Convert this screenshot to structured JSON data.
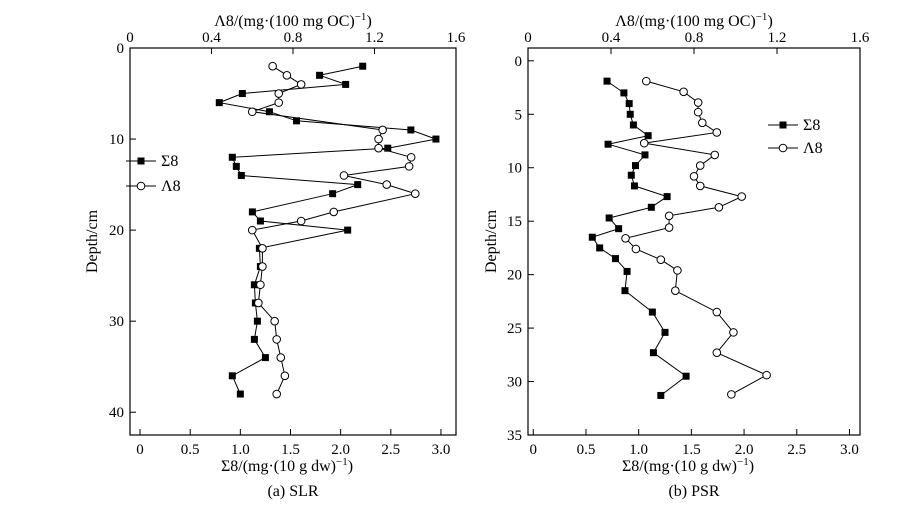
{
  "chart_data": [
    {
      "type": "line",
      "caption": "(a) SLR",
      "xlabel_bottom": "Σ8/(mg·(10 g dw)",
      "xlabel_top": "Λ8/(mg·(100 mg OC)",
      "ylabel": "Depth/cm",
      "xlim_bottom": [
        -0.1,
        3.15
      ],
      "xlim_top": [
        0,
        1.6
      ],
      "ylim": [
        0,
        42.5
      ],
      "y_reversed": true,
      "xticks_bottom": [
        0,
        0.5,
        1.0,
        1.5,
        2.0,
        2.5,
        3.0
      ],
      "xticklabels_bottom": [
        "0",
        "0.5",
        "1.0",
        "1.5",
        "2.0",
        "2.5",
        "3.0"
      ],
      "xticks_top": [
        0,
        0.4,
        0.8,
        1.2,
        1.6
      ],
      "xticklabels_top": [
        "0",
        "0.4",
        "0.8",
        "1.2",
        "1.6"
      ],
      "yticks": [
        0,
        10,
        20,
        30,
        40
      ],
      "yticklabels": [
        "0",
        "10",
        "20",
        "30",
        "40"
      ],
      "legend_placement": "left",
      "series": [
        {
          "name": "Σ8",
          "axis": "bottom",
          "marker": "square-filled",
          "points": [
            [
              2.22,
              2
            ],
            [
              1.79,
              3
            ],
            [
              2.05,
              4
            ],
            [
              1.02,
              5
            ],
            [
              0.79,
              6
            ],
            [
              1.29,
              7
            ],
            [
              1.56,
              8
            ],
            [
              2.7,
              9
            ],
            [
              2.95,
              10
            ],
            [
              2.47,
              11
            ],
            [
              0.92,
              12
            ],
            [
              0.96,
              13
            ],
            [
              1.01,
              14
            ],
            [
              2.17,
              15
            ],
            [
              1.92,
              16
            ],
            [
              1.12,
              18
            ],
            [
              1.2,
              19
            ],
            [
              2.07,
              20
            ],
            [
              1.19,
              22
            ],
            [
              1.2,
              24
            ],
            [
              1.14,
              26
            ],
            [
              1.15,
              28
            ],
            [
              1.17,
              30
            ],
            [
              1.14,
              32
            ],
            [
              1.25,
              34
            ],
            [
              0.92,
              36
            ],
            [
              1.0,
              38
            ]
          ]
        },
        {
          "name": "Λ8",
          "axis": "top",
          "marker": "circle-open",
          "points": [
            [
              0.7,
              2
            ],
            [
              0.77,
              3
            ],
            [
              0.84,
              4
            ],
            [
              0.73,
              5
            ],
            [
              0.73,
              6
            ],
            [
              0.6,
              7
            ],
            [
              1.24,
              9
            ],
            [
              1.22,
              10
            ],
            [
              1.22,
              11
            ],
            [
              1.38,
              12
            ],
            [
              1.37,
              13
            ],
            [
              1.05,
              14
            ],
            [
              1.26,
              15
            ],
            [
              1.4,
              16
            ],
            [
              1.0,
              18
            ],
            [
              0.84,
              19
            ],
            [
              0.6,
              20
            ],
            [
              0.65,
              22
            ],
            [
              0.65,
              24
            ],
            [
              0.64,
              26
            ],
            [
              0.63,
              28
            ],
            [
              0.71,
              30
            ],
            [
              0.72,
              32
            ],
            [
              0.74,
              34
            ],
            [
              0.76,
              36
            ],
            [
              0.72,
              38
            ]
          ]
        }
      ]
    },
    {
      "type": "line",
      "caption": "(b) PSR",
      "xlabel_bottom": "Σ8/(mg·(10 g dw)",
      "xlabel_top": "Λ8/(mg·(100 mg OC)",
      "ylabel": "Depth/cm",
      "xlim_bottom": [
        -0.05,
        3.1
      ],
      "xlim_top": [
        0,
        1.6
      ],
      "ylim": [
        -1.2,
        35
      ],
      "y_reversed": true,
      "xticks_bottom": [
        0,
        0.5,
        1.0,
        1.5,
        2.0,
        2.5,
        3.0
      ],
      "xticklabels_bottom": [
        "0",
        "0.5",
        "1.0",
        "1.5",
        "2.0",
        "2.5",
        "3.0"
      ],
      "xticks_top": [
        0,
        0.4,
        0.8,
        1.2,
        1.6
      ],
      "xticklabels_top": [
        "0",
        "0.4",
        "0.8",
        "1.2",
        "1.6"
      ],
      "yticks": [
        0,
        5,
        10,
        15,
        20,
        25,
        30,
        35
      ],
      "yticklabels": [
        "0",
        "5",
        "10",
        "15",
        "20",
        "25",
        "30",
        "35"
      ],
      "legend_placement": "top-right",
      "series": [
        {
          "name": "Σ8",
          "axis": "bottom",
          "marker": "square-filled",
          "points": [
            [
              0.7,
              1.9
            ],
            [
              0.86,
              3
            ],
            [
              0.91,
              4
            ],
            [
              0.92,
              5
            ],
            [
              0.95,
              6
            ],
            [
              1.09,
              7
            ],
            [
              0.71,
              7.8
            ],
            [
              1.06,
              8.8
            ],
            [
              0.97,
              9.8
            ],
            [
              0.93,
              10.7
            ],
            [
              0.96,
              11.7
            ],
            [
              1.27,
              12.7
            ],
            [
              1.12,
              13.7
            ],
            [
              0.72,
              14.7
            ],
            [
              0.81,
              15.7
            ],
            [
              0.56,
              16.5
            ],
            [
              0.63,
              17.5
            ],
            [
              0.78,
              18.5
            ],
            [
              0.89,
              19.7
            ],
            [
              0.87,
              21.5
            ],
            [
              1.13,
              23.5
            ],
            [
              1.25,
              25.4
            ],
            [
              1.14,
              27.3
            ],
            [
              1.45,
              29.5
            ],
            [
              1.21,
              31.3
            ]
          ]
        },
        {
          "name": "Λ8",
          "axis": "top",
          "marker": "circle-open",
          "points": [
            [
              0.57,
              1.9
            ],
            [
              0.75,
              2.9
            ],
            [
              0.82,
              3.9
            ],
            [
              0.82,
              4.8
            ],
            [
              0.84,
              5.8
            ],
            [
              0.91,
              6.7
            ],
            [
              0.56,
              7.7
            ],
            [
              0.9,
              8.8
            ],
            [
              0.83,
              9.8
            ],
            [
              0.8,
              10.8
            ],
            [
              0.83,
              11.7
            ],
            [
              1.03,
              12.7
            ],
            [
              0.92,
              13.7
            ],
            [
              0.68,
              14.5
            ],
            [
              0.68,
              15.6
            ],
            [
              0.47,
              16.6
            ],
            [
              0.52,
              17.6
            ],
            [
              0.64,
              18.6
            ],
            [
              0.72,
              19.6
            ],
            [
              0.71,
              21.5
            ],
            [
              0.91,
              23.5
            ],
            [
              0.99,
              25.4
            ],
            [
              0.91,
              27.3
            ],
            [
              1.15,
              29.4
            ],
            [
              0.98,
              31.2
            ]
          ]
        }
      ]
    }
  ]
}
